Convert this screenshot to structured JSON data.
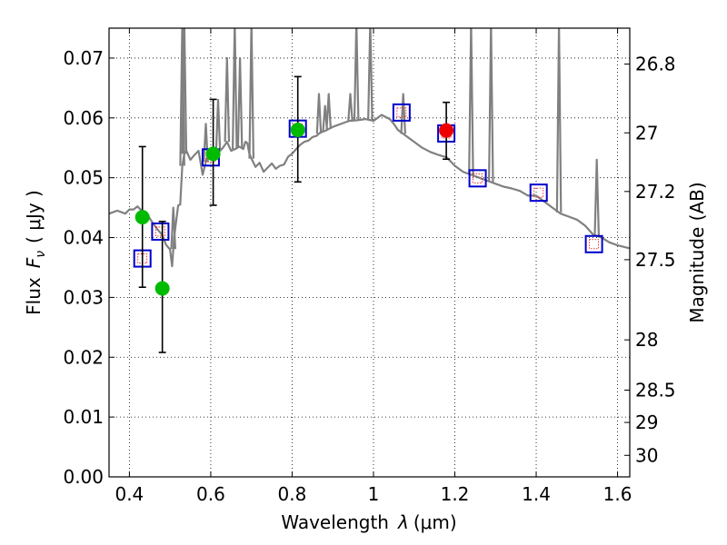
{
  "chart_data": {
    "type": "scatter",
    "xlabel_prefix": "Wavelength",
    "xlabel_symbol": "λ",
    "xlabel_unit": "(μm)",
    "ylabel_prefix": "Flux",
    "ylabel_symbol": "F",
    "ylabel_subscript": "ν",
    "ylabel_unit": "( μJy )",
    "y2label": "Magnitude (AB)",
    "xlim": [
      0.35,
      1.63
    ],
    "ylim": [
      0.0,
      0.075
    ],
    "grid": true,
    "xticks": [
      0.4,
      0.6,
      0.8,
      1.0,
      1.2,
      1.4,
      1.6
    ],
    "xtick_labels": [
      "0.4",
      "0.6",
      "0.8",
      "1",
      "1.2",
      "1.4",
      "1.6"
    ],
    "yticks": [
      0.0,
      0.01,
      0.02,
      0.03,
      0.04,
      0.05,
      0.06,
      0.07
    ],
    "ytick_labels": [
      "0.00",
      "0.01",
      "0.02",
      "0.03",
      "0.04",
      "0.05",
      "0.06",
      "0.07"
    ],
    "y2ticks": [
      {
        "flux": 0.069,
        "label": "26.8"
      },
      {
        "flux": 0.0575,
        "label": "27"
      },
      {
        "flux": 0.0477,
        "label": "27.2"
      },
      {
        "flux": 0.0363,
        "label": "27.5"
      },
      {
        "flux": 0.0229,
        "label": "28"
      },
      {
        "flux": 0.0145,
        "label": "28.5"
      },
      {
        "flux": 0.0091,
        "label": "29"
      },
      {
        "flux": 0.0036,
        "label": "30"
      }
    ],
    "colors": {
      "model": "#808080",
      "observed": "#00bb00",
      "observed_highlight": "#ee0000",
      "model_box": "#0000cc",
      "model_box_inner": "#ee0000",
      "errorbar": "#000000"
    },
    "series": [
      {
        "kind": "model_spectrum",
        "x": [
          0.35,
          0.37,
          0.39,
          0.4,
          0.41,
          0.42,
          0.43,
          0.44,
          0.45,
          0.46,
          0.47,
          0.48,
          0.49,
          0.5,
          0.505,
          0.51,
          0.515,
          0.52,
          0.525,
          0.53,
          0.535,
          0.54,
          0.55,
          0.56,
          0.57,
          0.58,
          0.59,
          0.6,
          0.61,
          0.62,
          0.63,
          0.64,
          0.65,
          0.66,
          0.67,
          0.68,
          0.685,
          0.69,
          0.695,
          0.7,
          0.71,
          0.72,
          0.73,
          0.74,
          0.75,
          0.76,
          0.77,
          0.78,
          0.79,
          0.8,
          0.81,
          0.82,
          0.83,
          0.84,
          0.85,
          0.86,
          0.87,
          0.88,
          0.9,
          0.92,
          0.94,
          0.96,
          0.98,
          1.0,
          1.02,
          1.04,
          1.05,
          1.06,
          1.08,
          1.1,
          1.12,
          1.14,
          1.16,
          1.18,
          1.2,
          1.22,
          1.24,
          1.26,
          1.28,
          1.3,
          1.32,
          1.34,
          1.36,
          1.38,
          1.4,
          1.42,
          1.44,
          1.46,
          1.48,
          1.5,
          1.52,
          1.54,
          1.56,
          1.58,
          1.6,
          1.63
        ],
        "y": [
          0.044,
          0.0445,
          0.044,
          0.0447,
          0.0447,
          0.0452,
          0.0445,
          0.0443,
          0.0432,
          0.0422,
          0.0413,
          0.0405,
          0.0388,
          0.038,
          0.0352,
          0.04,
          0.0428,
          0.0454,
          0.0455,
          0.052,
          0.054,
          0.0545,
          0.053,
          0.0538,
          0.0545,
          0.0505,
          0.0532,
          0.054,
          0.0546,
          0.0543,
          0.055,
          0.056,
          0.0545,
          0.0548,
          0.0552,
          0.0548,
          0.056,
          0.0558,
          0.054,
          0.0532,
          0.0518,
          0.0525,
          0.051,
          0.0517,
          0.0524,
          0.0515,
          0.052,
          0.0522,
          0.0535,
          0.054,
          0.0548,
          0.0555,
          0.056,
          0.0562,
          0.0568,
          0.057,
          0.0576,
          0.0578,
          0.0585,
          0.059,
          0.0595,
          0.0596,
          0.0598,
          0.0595,
          0.0605,
          0.0598,
          0.059,
          0.058,
          0.057,
          0.056,
          0.055,
          0.0543,
          0.0538,
          0.0534,
          0.052,
          0.051,
          0.0505,
          0.05,
          0.0495,
          0.049,
          0.0485,
          0.0482,
          0.0478,
          0.047,
          0.047,
          0.046,
          0.045,
          0.044,
          0.0435,
          0.043,
          0.042,
          0.0405,
          0.04,
          0.0392,
          0.0387,
          0.0382
        ]
      },
      {
        "kind": "emission_lines",
        "lines": [
          {
            "x": 0.508,
            "peak": 0.045
          },
          {
            "x": 0.53,
            "peak": 0.076
          },
          {
            "x": 0.535,
            "peak": 0.076
          },
          {
            "x": 0.588,
            "peak": 0.059
          },
          {
            "x": 0.618,
            "peak": 0.063
          },
          {
            "x": 0.64,
            "peak": 0.07
          },
          {
            "x": 0.659,
            "peak": 0.076
          },
          {
            "x": 0.672,
            "peak": 0.07
          },
          {
            "x": 0.7,
            "peak": 0.076
          },
          {
            "x": 0.866,
            "peak": 0.064
          },
          {
            "x": 0.881,
            "peak": 0.062
          },
          {
            "x": 0.89,
            "peak": 0.064
          },
          {
            "x": 0.943,
            "peak": 0.064
          },
          {
            "x": 0.958,
            "peak": 0.076
          },
          {
            "x": 0.992,
            "peak": 0.076
          },
          {
            "x": 1.073,
            "peak": 0.064
          },
          {
            "x": 1.24,
            "peak": 0.076
          },
          {
            "x": 1.289,
            "peak": 0.076
          },
          {
            "x": 1.456,
            "peak": 0.076
          },
          {
            "x": 1.549,
            "peak": 0.053
          }
        ]
      },
      {
        "kind": "observed_points",
        "points": [
          {
            "x": 0.432,
            "y": 0.0434,
            "yerr_lo": 0.0317,
            "yerr_hi": 0.0552,
            "highlight": false
          },
          {
            "x": 0.481,
            "y": 0.0315,
            "yerr_lo": 0.0208,
            "yerr_hi": 0.0427,
            "highlight": false
          },
          {
            "x": 0.606,
            "y": 0.054,
            "yerr_lo": 0.0454,
            "yerr_hi": 0.0631,
            "highlight": false
          },
          {
            "x": 0.814,
            "y": 0.058,
            "yerr_lo": 0.0493,
            "yerr_hi": 0.0669,
            "highlight": false
          },
          {
            "x": 1.179,
            "y": 0.0579,
            "yerr_lo": 0.0531,
            "yerr_hi": 0.0626,
            "highlight": true
          }
        ]
      },
      {
        "kind": "model_photometry",
        "points": [
          {
            "x": 0.432,
            "y": 0.0365
          },
          {
            "x": 0.476,
            "y": 0.041
          },
          {
            "x": 0.6,
            "y": 0.0534
          },
          {
            "x": 0.814,
            "y": 0.0582
          },
          {
            "x": 1.069,
            "y": 0.0609
          },
          {
            "x": 1.179,
            "y": 0.0574
          },
          {
            "x": 1.256,
            "y": 0.0499
          },
          {
            "x": 1.406,
            "y": 0.0475
          },
          {
            "x": 1.542,
            "y": 0.0389
          }
        ]
      }
    ]
  }
}
